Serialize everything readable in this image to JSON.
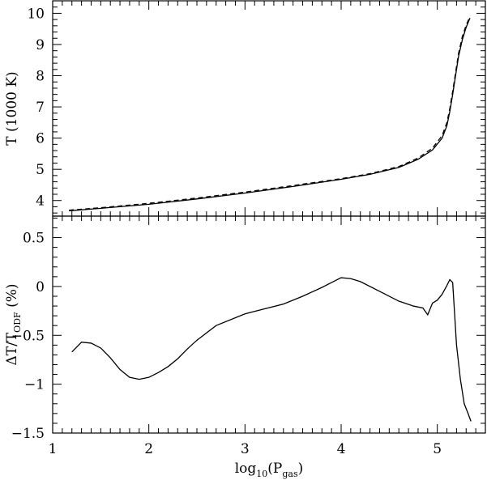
{
  "chart_data": [
    {
      "type": "line",
      "panel": "top",
      "xlabel": "",
      "ylabel": "T (1000 K)",
      "xlim": [
        1.0,
        5.5
      ],
      "ylim": [
        3.5,
        10.4
      ],
      "xticks": [
        1,
        2,
        3,
        4,
        5
      ],
      "yticks": [
        4,
        5,
        6,
        7,
        8,
        9,
        10
      ],
      "ytick_labels": [
        "4",
        "5",
        "6",
        "7",
        "8",
        "9",
        "10"
      ],
      "series": [
        {
          "style": "solid",
          "x": [
            1.17,
            1.5,
            2.0,
            2.5,
            3.0,
            3.5,
            4.0,
            4.3,
            4.6,
            4.8,
            4.95,
            5.05,
            5.1,
            5.13,
            5.16,
            5.19,
            5.22,
            5.26,
            5.3,
            5.34
          ],
          "y": [
            3.67,
            3.75,
            3.88,
            4.05,
            4.24,
            4.45,
            4.68,
            4.84,
            5.06,
            5.32,
            5.62,
            6.0,
            6.4,
            6.85,
            7.4,
            8.0,
            8.6,
            9.15,
            9.55,
            9.85
          ]
        },
        {
          "style": "dashed",
          "x": [
            1.17,
            1.5,
            2.0,
            2.5,
            3.0,
            3.5,
            4.0,
            4.3,
            4.6,
            4.8,
            4.95,
            5.05,
            5.1,
            5.13,
            5.16,
            5.19,
            5.22,
            5.26,
            5.3,
            5.34
          ],
          "y": [
            3.69,
            3.77,
            3.91,
            4.08,
            4.27,
            4.48,
            4.7,
            4.86,
            5.09,
            5.36,
            5.68,
            6.08,
            6.5,
            6.95,
            7.5,
            8.1,
            8.7,
            9.25,
            9.62,
            9.9
          ]
        }
      ]
    },
    {
      "type": "line",
      "panel": "bottom",
      "xlabel": "log10(Pgas)",
      "ylabel": "ΔT/TODF (%)",
      "xlim": [
        1.0,
        5.5
      ],
      "ylim": [
        -1.5,
        0.72
      ],
      "xticks": [
        1,
        2,
        3,
        4,
        5
      ],
      "xtick_labels": [
        "1",
        "2",
        "3",
        "4",
        "5"
      ],
      "yticks": [
        0.5,
        0,
        -0.5,
        -1,
        -1.5
      ],
      "ytick_labels": [
        "0.5",
        "0",
        "−0.5",
        "−1",
        "−1.5"
      ],
      "series": [
        {
          "style": "solid",
          "x": [
            1.2,
            1.3,
            1.4,
            1.5,
            1.6,
            1.7,
            1.8,
            1.9,
            2.0,
            2.1,
            2.2,
            2.3,
            2.4,
            2.5,
            2.7,
            3.0,
            3.2,
            3.4,
            3.6,
            3.8,
            3.9,
            4.0,
            4.1,
            4.2,
            4.4,
            4.6,
            4.75,
            4.85,
            4.9,
            4.95,
            5.0,
            5.05,
            5.1,
            5.13,
            5.16,
            5.2,
            5.24,
            5.28,
            5.32,
            5.35
          ],
          "y": [
            -0.67,
            -0.57,
            -0.58,
            -0.63,
            -0.73,
            -0.85,
            -0.93,
            -0.95,
            -0.93,
            -0.88,
            -0.82,
            -0.74,
            -0.64,
            -0.55,
            -0.4,
            -0.28,
            -0.23,
            -0.18,
            -0.1,
            -0.01,
            0.04,
            0.09,
            0.08,
            0.05,
            -0.05,
            -0.15,
            -0.2,
            -0.22,
            -0.29,
            -0.17,
            -0.14,
            -0.08,
            0.01,
            0.07,
            0.04,
            -0.6,
            -0.95,
            -1.2,
            -1.3,
            -1.38
          ]
        }
      ]
    }
  ]
}
